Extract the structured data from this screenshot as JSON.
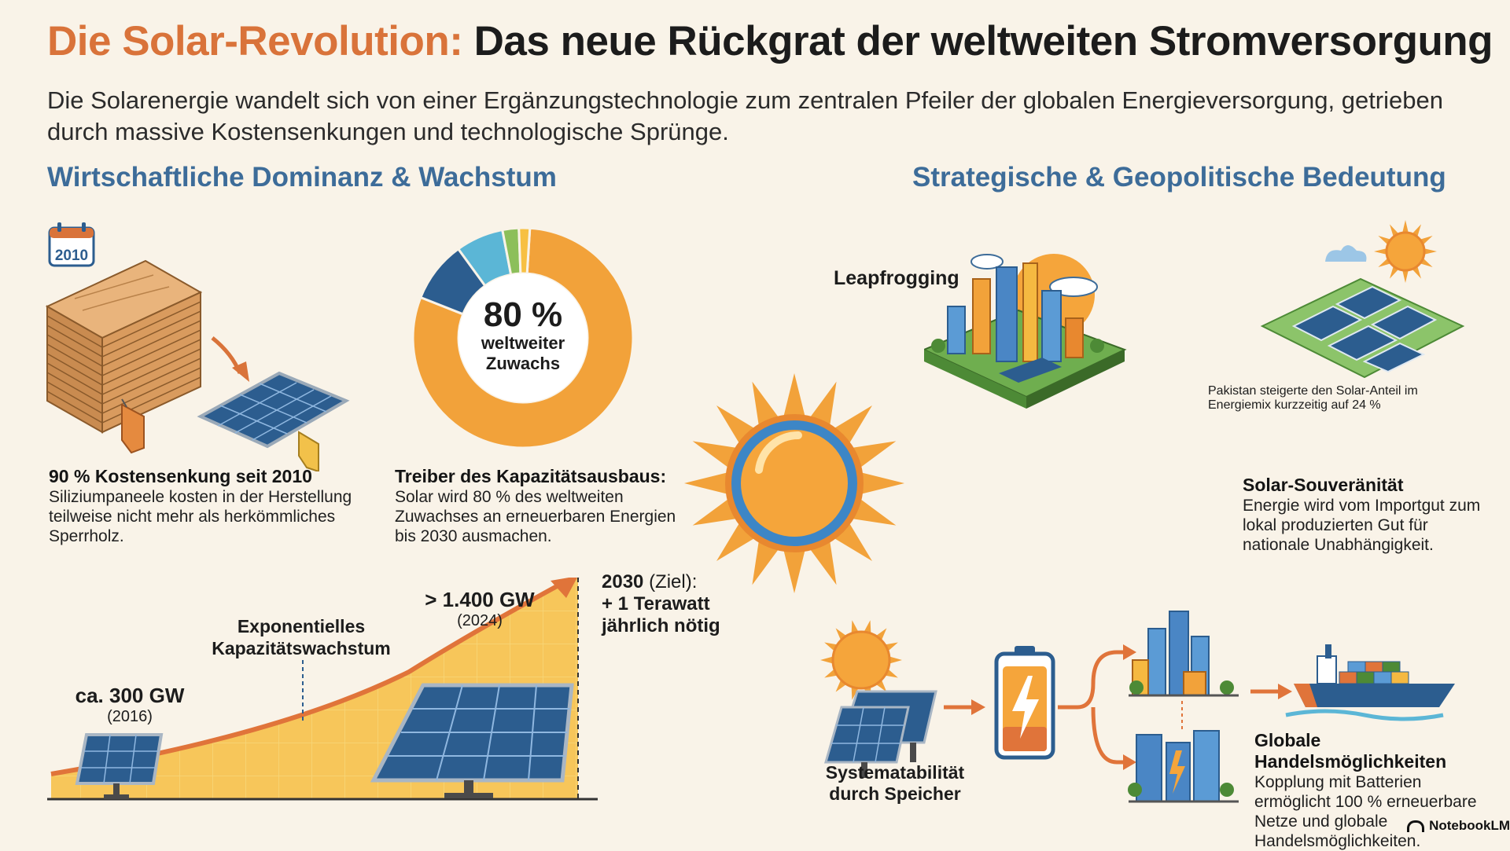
{
  "title": {
    "accent": "Die Solar-Revolution:",
    "main": "Das neue Rückgrat der weltweiten Stromversorgung"
  },
  "subtitle": "Die Solarenergie wandelt sich von einer Ergänzungstechnologie zum zentralen Pfeiler der globalen Energieversorgung, getrieben durch massive Kostensenkungen und technologische Sprünge.",
  "sections": {
    "left": "Wirtschaftliche Dominanz & Wachstum",
    "right": "Strategische & Geopolitische Bedeutung"
  },
  "cost": {
    "calendar_year": "2010",
    "heading": "90 %  Kostensenkung seit 2010",
    "text": "Siliziumpaneele kosten in der Herstellung teilweise nicht mehr als herkömmliches Sperrholz."
  },
  "donut": {
    "center_value": "80 %",
    "center_line1": "weltweiter",
    "center_line2": "Zuwachs",
    "solar_share": 0.8,
    "colors": {
      "solar": "#f2a23a",
      "dark": "#2c5d8f",
      "light": "#5bb6d6",
      "green": "#8cbf5a",
      "amber": "#f7c043"
    },
    "heading": "Treiber des Kapazitätsausbaus:",
    "text": "Solar wird 80 % des weltweiten Zuwachses an erneuerbaren Energien bis 2030 ausmachen."
  },
  "growth": {
    "label_start_value": "ca. 300 GW",
    "label_start_year": "(2016)",
    "label_mid": "Exponentielles Kapazitätswachstum",
    "label_2024_value": "> 1.400 GW",
    "label_2024_year": "(2024)",
    "label_target_year": "2030",
    "label_target_tag": "(Ziel):",
    "label_target_line2": "+ 1 Terawatt",
    "label_target_line3": "jährlich nötig"
  },
  "leapfrogging": {
    "label": "Leapfrogging"
  },
  "pakistan": {
    "text": "Pakistan steigerte den Solar-Anteil im Energiemix kurzzeitig auf 24 %"
  },
  "sovereignty": {
    "heading": "Solar-Souveränität",
    "text": "Energie wird vom Importgut zum lokal produzierten Gut für nationale Unabhängigkeit."
  },
  "storage": {
    "label_line1": "Systematabilität",
    "label_line2": "durch Speicher"
  },
  "trade": {
    "heading": "Globale Handelsmöglichkeiten",
    "text": "Kopplung mit Batterien ermöglicht 100 % erneuerbare Netze und globale Handelsmöglichkeiten."
  },
  "brand": {
    "name": "NotebookLM"
  },
  "colors": {
    "orange": "#d9733a",
    "blue": "#3d6c99",
    "sun": "#f2a23a"
  }
}
